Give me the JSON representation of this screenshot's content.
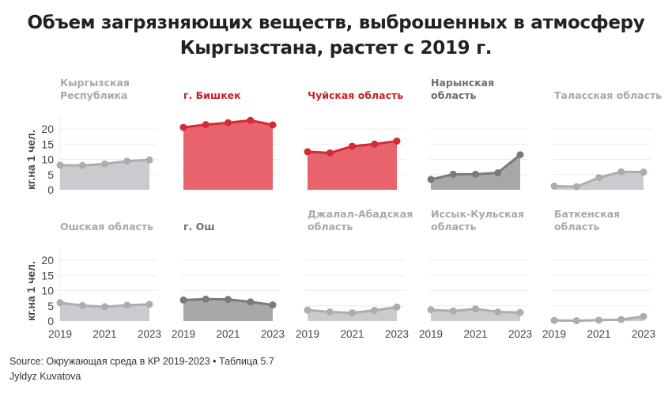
{
  "title_line1": "Объем загрязняющих веществ, выброшенных в атмосферу",
  "title_line2": "Кыргызстана, растет с 2019 г.",
  "source": "Source: Окружающая среда в КР 2019-2023 • Таблица 5.7",
  "author": "Jyldyz Kuvatova",
  "chart_data": {
    "type": "area",
    "ylabel": "кг.на 1 чел.",
    "x": [
      2019,
      2020,
      2021,
      2022,
      2023
    ],
    "x_tick_labels": [
      "2019",
      "2021",
      "2023"
    ],
    "y_ticks": [
      0,
      5,
      10,
      15,
      20
    ],
    "ylim": [
      0,
      24
    ],
    "grid": true,
    "colors": {
      "red_fill": "#e8636b",
      "red_line": "#d42a35",
      "red_title": "#c8202b",
      "dark_fill": "#a3a3a3",
      "dark_line": "#7a7a7a",
      "dark_title": "#6e6e6e",
      "light_fill": "#c6c8cb",
      "light_line": "#abadb0",
      "light_title": "#a8a8a8"
    },
    "panels": [
      {
        "title": [
          "Кыргызская",
          "Республика"
        ],
        "style": "light",
        "values": [
          8.1,
          8.0,
          8.5,
          9.4,
          9.8
        ]
      },
      {
        "title": [
          "г. Бишкек"
        ],
        "style": "red",
        "values": [
          20.5,
          21.4,
          22.0,
          22.8,
          21.3
        ]
      },
      {
        "title": [
          "Чуйская область"
        ],
        "style": "red",
        "values": [
          12.5,
          12.1,
          14.3,
          15.0,
          16.0
        ]
      },
      {
        "title": [
          "Нарынская",
          "область"
        ],
        "style": "dark",
        "values": [
          3.4,
          5.1,
          5.1,
          5.6,
          11.5
        ]
      },
      {
        "title": [
          "Таласская область"
        ],
        "style": "light",
        "values": [
          1.2,
          1.0,
          4.0,
          5.9,
          5.8
        ]
      },
      {
        "title": [
          "Ошская область"
        ],
        "style": "light",
        "values": [
          6.0,
          5.1,
          4.7,
          5.2,
          5.5
        ]
      },
      {
        "title": [
          "г. Ош"
        ],
        "style": "dark",
        "values": [
          6.9,
          7.2,
          7.1,
          6.3,
          5.3
        ]
      },
      {
        "title": [
          "Джалал-Абадская",
          "область"
        ],
        "style": "light",
        "values": [
          3.6,
          3.0,
          2.7,
          3.5,
          4.6
        ]
      },
      {
        "title": [
          "Иссык-Кульская",
          "область"
        ],
        "style": "light",
        "values": [
          3.7,
          3.3,
          4.0,
          3.0,
          2.8
        ]
      },
      {
        "title": [
          "Баткенская",
          "область"
        ],
        "style": "light",
        "values": [
          0.2,
          0.1,
          0.3,
          0.5,
          1.5
        ]
      }
    ]
  }
}
